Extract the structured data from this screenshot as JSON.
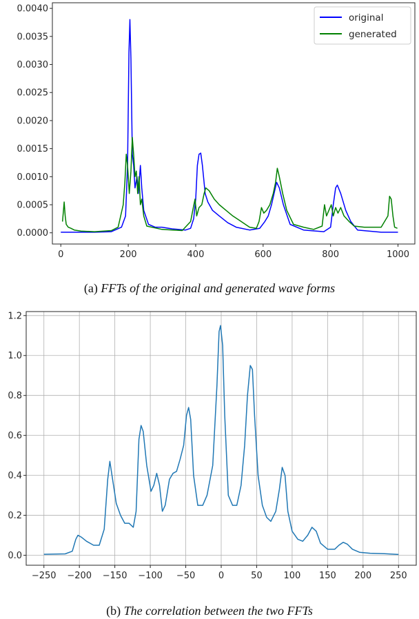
{
  "chart_data": [
    {
      "type": "line",
      "xlim": [
        0,
        1000
      ],
      "ylim": [
        0,
        0.004
      ],
      "x_ticks": [
        0,
        200,
        400,
        600,
        800,
        1000
      ],
      "y_ticks": [
        "0.0000",
        "0.0005",
        "0.0010",
        "0.0015",
        "0.0020",
        "0.0025",
        "0.0030",
        "0.0035",
        "0.0040"
      ],
      "grid": false,
      "legend": "top-right",
      "series": [
        {
          "name": "original",
          "color": "#0000ff",
          "points": [
            [
              0,
              1e-05
            ],
            [
              100,
              1e-05
            ],
            [
              150,
              2e-05
            ],
            [
              180,
              0.0001
            ],
            [
              192,
              0.0003
            ],
            [
              198,
              0.0012
            ],
            [
              202,
              0.0032
            ],
            [
              205,
              0.0038
            ],
            [
              208,
              0.0031
            ],
            [
              212,
              0.0014
            ],
            [
              216,
              0.0012
            ],
            [
              220,
              0.0008
            ],
            [
              226,
              0.001
            ],
            [
              230,
              0.0007
            ],
            [
              236,
              0.0012
            ],
            [
              240,
              0.0008
            ],
            [
              246,
              0.0004
            ],
            [
              260,
              0.00015
            ],
            [
              280,
              0.0001
            ],
            [
              300,
              0.0001
            ],
            [
              330,
              7e-05
            ],
            [
              370,
              5e-05
            ],
            [
              385,
              8e-05
            ],
            [
              394,
              0.00025
            ],
            [
              400,
              0.0006
            ],
            [
              405,
              0.0012
            ],
            [
              410,
              0.0014
            ],
            [
              415,
              0.00142
            ],
            [
              420,
              0.0012
            ],
            [
              428,
              0.0007
            ],
            [
              436,
              0.00055
            ],
            [
              450,
              0.0004
            ],
            [
              470,
              0.0003
            ],
            [
              495,
              0.00018
            ],
            [
              520,
              0.0001
            ],
            [
              560,
              5e-05
            ],
            [
              590,
              8e-05
            ],
            [
              605,
              0.0002
            ],
            [
              615,
              0.0003
            ],
            [
              625,
              0.0005
            ],
            [
              640,
              0.0009
            ],
            [
              648,
              0.0008
            ],
            [
              660,
              0.0005
            ],
            [
              680,
              0.00015
            ],
            [
              720,
              5e-05
            ],
            [
              780,
              2e-05
            ],
            [
              800,
              0.0001
            ],
            [
              808,
              0.0005
            ],
            [
              815,
              0.0008
            ],
            [
              820,
              0.00085
            ],
            [
              830,
              0.0007
            ],
            [
              845,
              0.0004
            ],
            [
              860,
              0.0002
            ],
            [
              880,
              5e-05
            ],
            [
              950,
              1e-05
            ],
            [
              1000,
              1e-05
            ]
          ]
        },
        {
          "name": "generated",
          "color": "#008000",
          "points": [
            [
              5,
              0.0002
            ],
            [
              8,
              0.0004
            ],
            [
              10,
              0.00055
            ],
            [
              13,
              0.0003
            ],
            [
              16,
              0.00015
            ],
            [
              22,
              0.0001
            ],
            [
              30,
              8e-05
            ],
            [
              40,
              5e-05
            ],
            [
              60,
              3e-05
            ],
            [
              100,
              2e-05
            ],
            [
              150,
              4e-05
            ],
            [
              170,
              0.0001
            ],
            [
              185,
              0.0005
            ],
            [
              190,
              0.0009
            ],
            [
              194,
              0.0014
            ],
            [
              198,
              0.0012
            ],
            [
              203,
              0.0007
            ],
            [
              208,
              0.0011
            ],
            [
              212,
              0.0017
            ],
            [
              216,
              0.0014
            ],
            [
              220,
              0.001
            ],
            [
              224,
              0.0011
            ],
            [
              228,
              0.0007
            ],
            [
              232,
              0.001
            ],
            [
              236,
              0.0005
            ],
            [
              240,
              0.0006
            ],
            [
              246,
              0.0003
            ],
            [
              255,
              0.00012
            ],
            [
              300,
              6e-05
            ],
            [
              360,
              4e-05
            ],
            [
              385,
              0.0002
            ],
            [
              393,
              0.00045
            ],
            [
              398,
              0.0006
            ],
            [
              403,
              0.0003
            ],
            [
              410,
              0.00045
            ],
            [
              418,
              0.0005
            ],
            [
              425,
              0.0007
            ],
            [
              430,
              0.0008
            ],
            [
              440,
              0.00075
            ],
            [
              455,
              0.0006
            ],
            [
              470,
              0.0005
            ],
            [
              490,
              0.0004
            ],
            [
              510,
              0.0003
            ],
            [
              530,
              0.00022
            ],
            [
              560,
              0.0001
            ],
            [
              580,
              8e-05
            ],
            [
              588,
              0.0002
            ],
            [
              595,
              0.00045
            ],
            [
              602,
              0.00035
            ],
            [
              610,
              0.0004
            ],
            [
              620,
              0.0005
            ],
            [
              630,
              0.0007
            ],
            [
              637,
              0.0009
            ],
            [
              642,
              0.00115
            ],
            [
              648,
              0.001
            ],
            [
              658,
              0.0007
            ],
            [
              670,
              0.0004
            ],
            [
              690,
              0.00015
            ],
            [
              720,
              0.0001
            ],
            [
              750,
              6e-05
            ],
            [
              775,
              0.00012
            ],
            [
              782,
              0.0005
            ],
            [
              788,
              0.0003
            ],
            [
              795,
              0.0004
            ],
            [
              802,
              0.0005
            ],
            [
              808,
              0.0003
            ],
            [
              815,
              0.00045
            ],
            [
              822,
              0.00035
            ],
            [
              830,
              0.00045
            ],
            [
              840,
              0.0003
            ],
            [
              855,
              0.0002
            ],
            [
              870,
              0.00012
            ],
            [
              900,
              0.0001
            ],
            [
              950,
              0.0001
            ],
            [
              970,
              0.0003
            ],
            [
              975,
              0.00065
            ],
            [
              980,
              0.0006
            ],
            [
              985,
              0.0003
            ],
            [
              990,
              0.0001
            ],
            [
              998,
              8e-05
            ]
          ]
        }
      ]
    },
    {
      "type": "line",
      "xlim": [
        -250,
        250
      ],
      "ylim": [
        0,
        1.2
      ],
      "x_ticks": [
        -250,
        -200,
        -150,
        -100,
        -50,
        0,
        50,
        100,
        150,
        200,
        250
      ],
      "x_tick_labels": [
        "−250",
        "−200",
        "−150",
        "−100",
        "−50",
        "0",
        "50",
        "100",
        "150",
        "200",
        "250"
      ],
      "y_ticks": [
        "0.0",
        "0.2",
        "0.4",
        "0.6",
        "0.8",
        "1.0",
        "1.2"
      ],
      "grid": true,
      "series": [
        {
          "color": "#1f77b4",
          "points": [
            [
              -250,
              0.005
            ],
            [
              -220,
              0.007
            ],
            [
              -210,
              0.02
            ],
            [
              -205,
              0.08
            ],
            [
              -202,
              0.1
            ],
            [
              -197,
              0.09
            ],
            [
              -190,
              0.07
            ],
            [
              -180,
              0.05
            ],
            [
              -172,
              0.05
            ],
            [
              -165,
              0.13
            ],
            [
              -160,
              0.38
            ],
            [
              -157,
              0.47
            ],
            [
              -154,
              0.4
            ],
            [
              -148,
              0.26
            ],
            [
              -142,
              0.2
            ],
            [
              -136,
              0.16
            ],
            [
              -130,
              0.16
            ],
            [
              -124,
              0.14
            ],
            [
              -120,
              0.22
            ],
            [
              -116,
              0.58
            ],
            [
              -113,
              0.65
            ],
            [
              -110,
              0.62
            ],
            [
              -105,
              0.45
            ],
            [
              -99,
              0.32
            ],
            [
              -95,
              0.35
            ],
            [
              -91,
              0.41
            ],
            [
              -87,
              0.35
            ],
            [
              -83,
              0.22
            ],
            [
              -79,
              0.25
            ],
            [
              -73,
              0.38
            ],
            [
              -68,
              0.41
            ],
            [
              -63,
              0.42
            ],
            [
              -58,
              0.48
            ],
            [
              -53,
              0.55
            ],
            [
              -49,
              0.7
            ],
            [
              -46,
              0.74
            ],
            [
              -43,
              0.68
            ],
            [
              -39,
              0.4
            ],
            [
              -33,
              0.25
            ],
            [
              -26,
              0.25
            ],
            [
              -20,
              0.3
            ],
            [
              -12,
              0.45
            ],
            [
              -6,
              0.85
            ],
            [
              -3,
              1.12
            ],
            [
              -1,
              1.15
            ],
            [
              2,
              1.05
            ],
            [
              5,
              0.7
            ],
            [
              10,
              0.3
            ],
            [
              16,
              0.25
            ],
            [
              22,
              0.25
            ],
            [
              28,
              0.35
            ],
            [
              33,
              0.55
            ],
            [
              37,
              0.8
            ],
            [
              41,
              0.95
            ],
            [
              44,
              0.93
            ],
            [
              47,
              0.7
            ],
            [
              52,
              0.4
            ],
            [
              58,
              0.25
            ],
            [
              64,
              0.19
            ],
            [
              70,
              0.17
            ],
            [
              77,
              0.22
            ],
            [
              82,
              0.33
            ],
            [
              86,
              0.44
            ],
            [
              90,
              0.4
            ],
            [
              94,
              0.22
            ],
            [
              100,
              0.12
            ],
            [
              108,
              0.08
            ],
            [
              115,
              0.07
            ],
            [
              122,
              0.1
            ],
            [
              128,
              0.14
            ],
            [
              134,
              0.12
            ],
            [
              140,
              0.06
            ],
            [
              150,
              0.03
            ],
            [
              160,
              0.03
            ],
            [
              166,
              0.05
            ],
            [
              172,
              0.065
            ],
            [
              178,
              0.055
            ],
            [
              185,
              0.03
            ],
            [
              195,
              0.015
            ],
            [
              210,
              0.01
            ],
            [
              230,
              0.008
            ],
            [
              250,
              0.004
            ]
          ]
        }
      ]
    }
  ],
  "captions": {
    "a": {
      "label": "(a)",
      "text": "FFTs of the original and generated wave forms"
    },
    "b": {
      "label": "(b)",
      "text": "The correlation between the two FFTs"
    }
  }
}
